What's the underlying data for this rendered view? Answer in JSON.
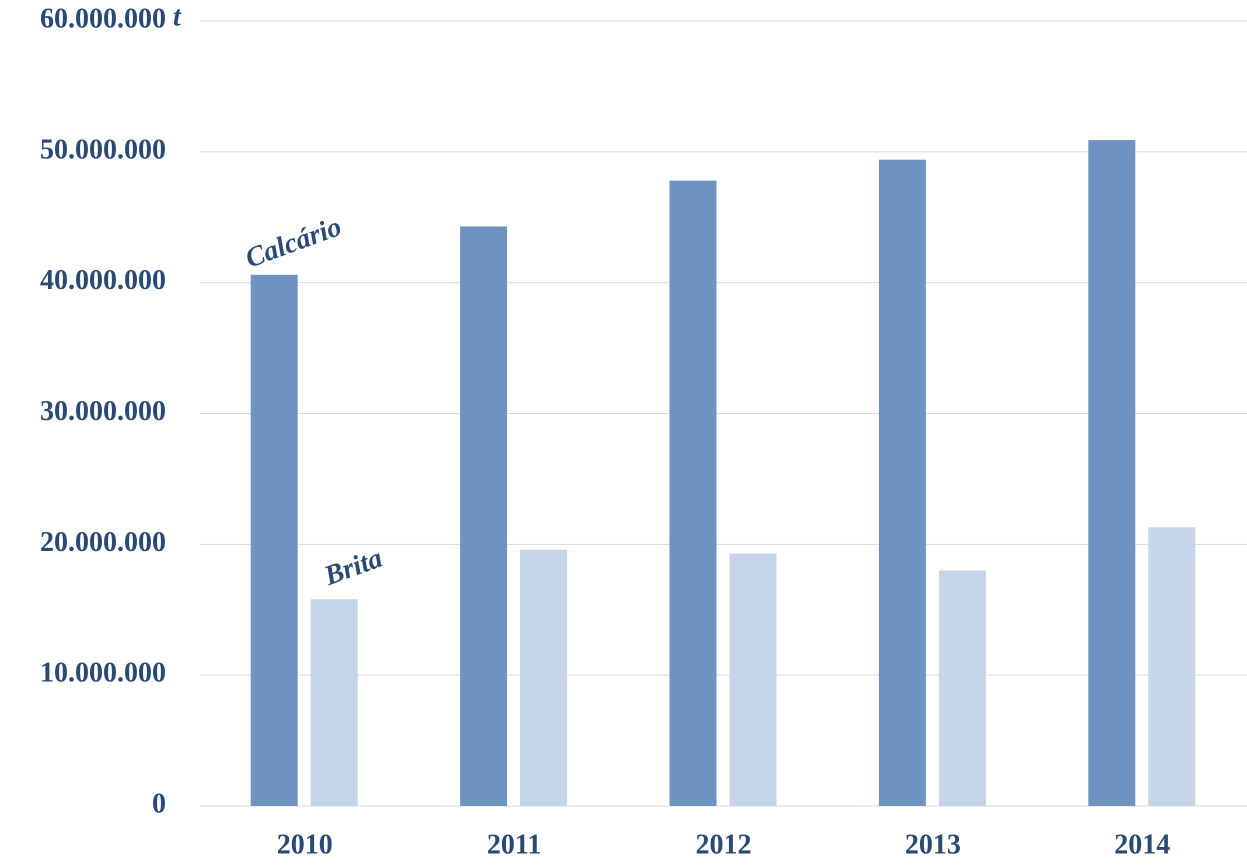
{
  "chart_data": {
    "type": "bar",
    "y_unit": "t",
    "categories": [
      "2010",
      "2011",
      "2012",
      "2013",
      "2014"
    ],
    "series": [
      {
        "name": "Calcário",
        "color": "#6f93c0",
        "values": [
          40600000,
          44300000,
          47800000,
          49400000,
          50900000
        ]
      },
      {
        "name": "Brita",
        "color": "#c5d4e6",
        "values": [
          15800000,
          19600000,
          19300000,
          18000000,
          21300000
        ]
      }
    ],
    "ylim": [
      0,
      60000000
    ],
    "yticks": [
      0,
      {
        "value": 10000000,
        "label": "10.000.000"
      },
      {
        "value": 20000000,
        "label": "20.000.000"
      },
      {
        "value": 30000000,
        "label": "30.000.000"
      },
      {
        "value": 40000000,
        "label": "40.000.000"
      },
      {
        "value": 50000000,
        "label": "50.000.000"
      },
      {
        "value": 60000000,
        "label": "60.000.000"
      }
    ],
    "grid": true
  }
}
